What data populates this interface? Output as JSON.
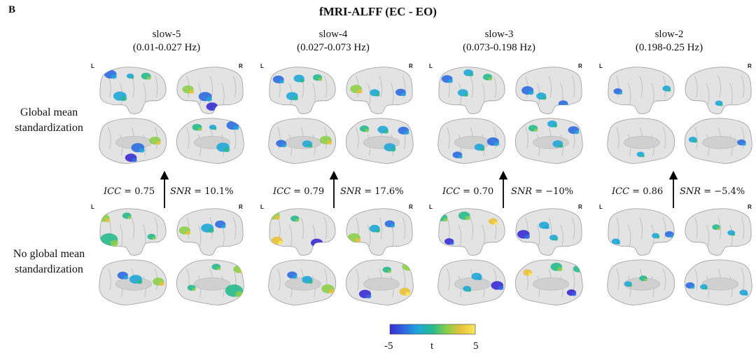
{
  "panel_letter": "B",
  "figure_title": "fMRI-ALFF (EC - EO)",
  "row_labels": [
    [
      "Global mean",
      "standardization"
    ],
    [
      "No global mean",
      "standardization"
    ]
  ],
  "hemisphere_labels": {
    "left": "L",
    "right": "R"
  },
  "colors": {
    "cortex_fill": "#e3e3e3",
    "cortex_stroke": "#9a9a9a",
    "colormap": [
      "#3a2bd1",
      "#2e6be0",
      "#1fa6d8",
      "#27b98d",
      "#8ccf4a",
      "#e9c13a",
      "#f7ea5a"
    ]
  },
  "bands": [
    {
      "name": "slow-5",
      "range": "(0.01-0.027 Hz)",
      "icc_label": "ICC",
      "icc_value": "= 0.75",
      "snr_label": "SNR",
      "snr_value": "= 10.1%",
      "blobs": {
        "top": [
          [
            0.18,
            0.16,
            0.13,
            0.4
          ],
          [
            0.47,
            0.2,
            0.38,
            0.1
          ],
          [
            0.7,
            0.2,
            0.48,
            0.25
          ],
          [
            0.32,
            0.62,
            0.3,
            0.45
          ],
          [
            0.83,
            0.48,
            0.62,
            0.34
          ],
          [
            0.58,
            0.63,
            0.24,
            0.45
          ],
          [
            0.48,
            0.84,
            0.08,
            0.36
          ]
        ],
        "bottom": [
          [
            0.09,
            0.21,
            0.6,
            0.32
          ],
          [
            0.42,
            0.16,
            0.46,
            0.2
          ],
          [
            0.16,
            0.66,
            0.55,
            0.72
          ],
          [
            0.78,
            0.6,
            0.45,
            0.16
          ],
          [
            0.55,
            0.42,
            0.3,
            0.42
          ],
          [
            0.88,
            0.47,
            0.6,
            0.34
          ],
          [
            0.36,
            0.34,
            0.2,
            0.3
          ]
        ]
      }
    },
    {
      "name": "slow-4",
      "range": "(0.027-0.073 Hz)",
      "icc_label": "ICC",
      "icc_value": "= 0.79",
      "snr_label": "SNR",
      "snr_value": "= 17.6%",
      "blobs": {
        "top": [
          [
            0.16,
            0.27,
            0.16,
            0.32
          ],
          [
            0.46,
            0.25,
            0.34,
            0.3
          ],
          [
            0.73,
            0.23,
            0.52,
            0.22
          ],
          [
            0.36,
            0.62,
            0.28,
            0.36
          ],
          [
            0.85,
            0.47,
            0.6,
            0.38
          ],
          [
            0.58,
            0.55,
            0.3,
            0.26
          ],
          [
            0.2,
            0.54,
            0.14,
            0.28
          ]
        ],
        "bottom": [
          [
            0.09,
            0.15,
            0.64,
            0.4
          ],
          [
            0.4,
            0.22,
            0.44,
            0.18
          ],
          [
            0.14,
            0.68,
            0.78,
            0.32
          ],
          [
            0.72,
            0.73,
            0.08,
            0.38
          ],
          [
            0.88,
            0.62,
            0.72,
            0.42
          ],
          [
            0.58,
            0.43,
            0.3,
            0.3
          ],
          [
            0.36,
            0.33,
            0.16,
            0.26
          ]
        ]
      }
    },
    {
      "name": "slow-3",
      "range": "(0.073-0.198 Hz)",
      "icc_label": "ICC",
      "icc_value": "= 0.70",
      "snr_label": "SNR",
      "snr_value": "= −10%",
      "blobs": {
        "top": [
          [
            0.15,
            0.26,
            0.2,
            0.32
          ],
          [
            0.46,
            0.13,
            0.4,
            0.24
          ],
          [
            0.74,
            0.22,
            0.5,
            0.22
          ],
          [
            0.38,
            0.55,
            0.3,
            0.28
          ],
          [
            0.82,
            0.5,
            0.1,
            0.38
          ],
          [
            0.3,
            0.78,
            0.24,
            0.24
          ],
          [
            0.62,
            0.62,
            0.34,
            0.26
          ]
        ],
        "bottom": [
          [
            0.08,
            0.2,
            0.44,
            0.28
          ],
          [
            0.4,
            0.16,
            0.56,
            0.36
          ],
          [
            0.18,
            0.7,
            0.08,
            0.22
          ],
          [
            0.82,
            0.28,
            0.8,
            0.2
          ],
          [
            0.88,
            0.55,
            0.02,
            0.4
          ],
          [
            0.58,
            0.36,
            0.26,
            0.28
          ],
          [
            0.44,
            0.62,
            0.36,
            0.16
          ]
        ]
      }
    },
    {
      "name": "slow-2",
      "range": "(0.198-0.25 Hz)",
      "icc_label": "ICC",
      "icc_value": "= 0.86",
      "snr_label": "SNR",
      "snr_value": "= −5.4%",
      "blobs": {
        "top": [
          [
            0.17,
            0.52,
            0.24,
            0.18
          ],
          [
            0.88,
            0.46,
            0.4,
            0.16
          ],
          [
            0.5,
            0.77,
            0.3,
            0.12
          ]
        ],
        "bottom": [
          [
            0.14,
            0.7,
            0.26,
            0.16
          ],
          [
            0.72,
            0.58,
            0.38,
            0.12
          ],
          [
            0.92,
            0.55,
            0.22,
            0.2
          ],
          [
            0.54,
            0.4,
            0.44,
            0.14
          ],
          [
            0.32,
            0.52,
            0.3,
            0.12
          ]
        ]
      }
    }
  ],
  "colorbar": {
    "min": "-5",
    "label": "t",
    "max": "5"
  }
}
